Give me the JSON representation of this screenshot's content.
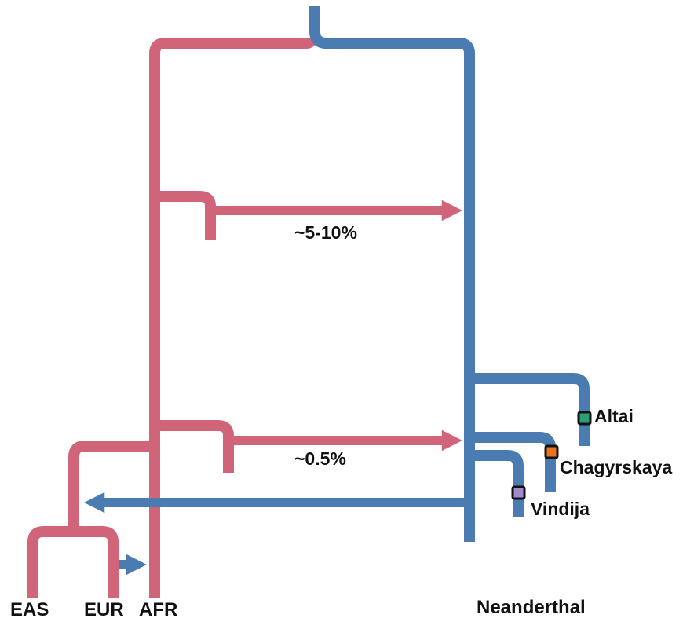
{
  "colors": {
    "modern_human": "#d06478",
    "neanderthal": "#4a7bb1",
    "altai": "#2aa07a",
    "chagyrskaya": "#e8741e",
    "vindija": "#a08ccc"
  },
  "populations": {
    "eas": "EAS",
    "eur": "EUR",
    "afr": "AFR",
    "neanderthal": "Neanderthal"
  },
  "gene_flow": {
    "early": "~5-10%",
    "late": "~0.5%"
  },
  "samples": {
    "altai": "Altai",
    "chagyrskaya": "Chagyrskaya",
    "vindija": "Vindija"
  }
}
